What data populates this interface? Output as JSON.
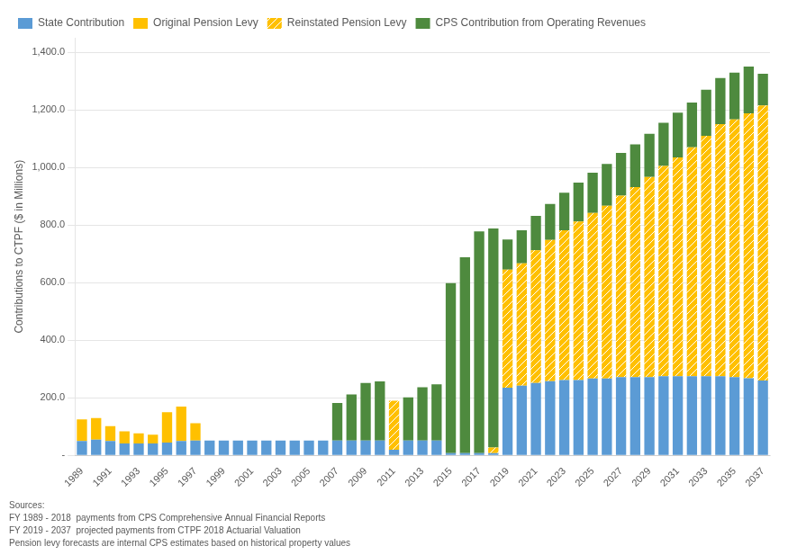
{
  "chart_data": {
    "type": "bar",
    "stacked": true,
    "categories": [
      "1989",
      null,
      "1991",
      null,
      "1993",
      null,
      "1995",
      null,
      "1997",
      null,
      "1999",
      null,
      "2001",
      null,
      "2003",
      null,
      "2005",
      null,
      "2007",
      null,
      "2009",
      null,
      "2011",
      null,
      "2013",
      null,
      "2015",
      null,
      "2017",
      null,
      "2019",
      null,
      "2021",
      null,
      "2023",
      null,
      "2025",
      null,
      "2027",
      null,
      "2029",
      null,
      "2031",
      null,
      "2033",
      null,
      "2035",
      null,
      "2037"
    ],
    "series": [
      {
        "name": "State Contribution",
        "color": "#5b9bd5",
        "values": [
          50,
          55,
          50,
          42,
          42,
          42,
          45,
          50,
          52,
          52,
          52,
          52,
          52,
          52,
          52,
          52,
          52,
          52,
          52,
          52,
          52,
          52,
          20,
          52,
          52,
          52,
          8,
          8,
          8,
          8,
          235,
          242,
          252,
          258,
          262,
          262,
          267,
          267,
          272,
          272,
          272,
          275,
          275,
          275,
          275,
          275,
          272,
          268,
          260
        ]
      },
      {
        "name": "Original Pension Levy",
        "color": "#ffc000",
        "values": [
          75,
          75,
          52,
          42,
          35,
          30,
          105,
          120,
          60,
          0,
          0,
          0,
          0,
          0,
          0,
          0,
          0,
          0,
          0,
          0,
          0,
          0,
          0,
          0,
          0,
          0,
          0,
          0,
          0,
          0,
          0,
          0,
          0,
          0,
          0,
          0,
          0,
          0,
          0,
          0,
          0,
          0,
          0,
          0,
          0,
          0,
          0,
          0,
          0
        ]
      },
      {
        "name": "Reinstated Pension Levy",
        "color": "#ffc000",
        "values": [
          0,
          0,
          0,
          0,
          0,
          0,
          0,
          0,
          0,
          0,
          0,
          0,
          0,
          0,
          0,
          0,
          0,
          0,
          0,
          0,
          0,
          0,
          170,
          0,
          0,
          0,
          0,
          0,
          0,
          20,
          410,
          425,
          460,
          490,
          520,
          550,
          575,
          600,
          630,
          660,
          695,
          730,
          760,
          795,
          835,
          875,
          895,
          920,
          955
        ]
      },
      {
        "name": "CPS Contribution from Operating Revenues",
        "color": "#4e8a3e",
        "values": [
          0,
          0,
          0,
          0,
          0,
          0,
          0,
          0,
          0,
          0,
          0,
          0,
          0,
          0,
          0,
          0,
          0,
          0,
          130,
          160,
          200,
          205,
          0,
          150,
          185,
          195,
          590,
          680,
          770,
          760,
          105,
          115,
          120,
          125,
          130,
          135,
          140,
          145,
          148,
          148,
          150,
          150,
          155,
          155,
          160,
          160,
          162,
          162,
          110
        ]
      }
    ],
    "y_label": "Contributions to CTPF ($ in Millions)",
    "ylim": [
      0,
      1450
    ],
    "yticks": [
      {
        "value": 0,
        "label": "-"
      },
      {
        "value": 200,
        "label": "200.0"
      },
      {
        "value": 400,
        "label": "400.0"
      },
      {
        "value": 600,
        "label": "600.0"
      },
      {
        "value": 800,
        "label": "800.0"
      },
      {
        "value": 1000,
        "label": "1,000.0"
      },
      {
        "value": 1200,
        "label": "1,200.0"
      },
      {
        "value": 1400,
        "label": "1,400.0"
      }
    ],
    "grid": true,
    "legend": "upper left",
    "annotations": [
      "Sources:\nFY 1989 - 2018  payments from CPS Comprehensive Annual Financial Reports\nFY 2019 - 2037  projected payments from CTPF 2018 Actuarial Valuation\nPension levy forecasts are internal CPS estimates based on historical property values"
    ]
  }
}
